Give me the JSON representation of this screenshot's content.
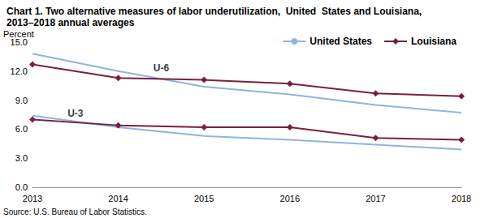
{
  "chart_data": {
    "type": "line",
    "title": "Chart 1. Two alternative measures of labor underutilization,  United  States and Louisiana, 2013–2018 annual averages",
    "ylabel": "Percent",
    "source": "Source: U.S. Bureau of Labor Statistics.",
    "x": [
      2013,
      2014,
      2015,
      2016,
      2017,
      2018
    ],
    "series": [
      {
        "name": "United States",
        "color": "#8db4e2",
        "marker": "none",
        "line_style": "solid",
        "values": [
          13.8,
          12.0,
          10.4,
          9.6,
          8.5,
          7.7
        ]
      },
      {
        "name": "Louisiana",
        "color": "#7b1f3e",
        "marker": "diamond",
        "line_style": "solid",
        "values": [
          12.7,
          11.3,
          11.1,
          10.7,
          9.7,
          9.4
        ]
      },
      {
        "name": "United States",
        "color": "#8db4e2",
        "marker": "none",
        "line_style": "solid",
        "values": [
          7.4,
          6.2,
          5.3,
          4.9,
          4.4,
          3.9
        ]
      },
      {
        "name": "Louisiana",
        "color": "#7b1f3e",
        "marker": "diamond",
        "line_style": "solid",
        "values": [
          7.0,
          6.4,
          6.2,
          6.2,
          5.1,
          4.9
        ]
      }
    ],
    "annotations": [
      {
        "text": "U-6",
        "x": 2014.5,
        "y": 12.3
      },
      {
        "text": "U-3",
        "x": 2013.5,
        "y": 7.6
      }
    ],
    "xlim": [
      2013,
      2018
    ],
    "xticks": [
      2013,
      2014,
      2015,
      2016,
      2017,
      2018
    ],
    "ylim": [
      0,
      15
    ],
    "yticks": [
      {
        "value": 0,
        "label": "0.0"
      },
      {
        "value": 3,
        "label": "3.0"
      },
      {
        "value": 6,
        "label": "6.0"
      },
      {
        "value": 9,
        "label": "9.0"
      },
      {
        "value": 12,
        "label": "12.0"
      },
      {
        "value": 15,
        "label": "15.0"
      }
    ],
    "grid": false,
    "legend": "top-right"
  }
}
